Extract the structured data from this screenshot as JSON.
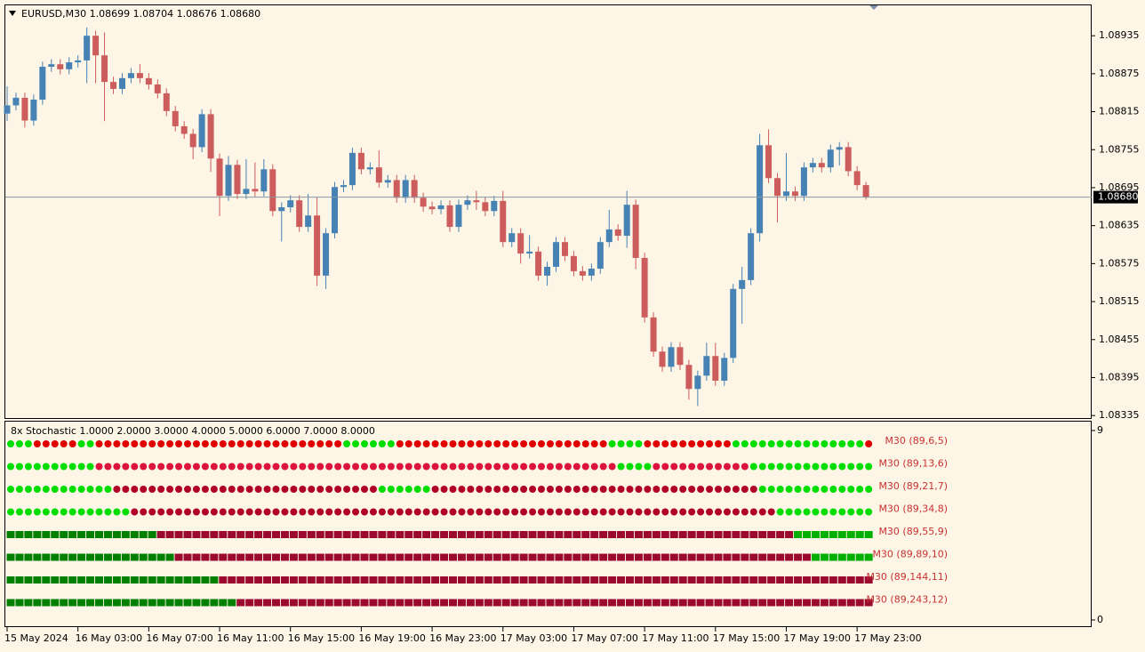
{
  "chart_data": {
    "type": "candlestick",
    "title": "EURUSD,M30  1.08699 1.08704 1.08676 1.08680",
    "up_color": "#4682b4",
    "down_color": "#cd5c5c",
    "background": "#fdf5e6",
    "categories": [
      "15 May 2024",
      null,
      null,
      null,
      null,
      null,
      null,
      null,
      "16 May 03:00",
      null,
      null,
      null,
      null,
      null,
      null,
      null,
      "16 May 07:00",
      null,
      null,
      null,
      null,
      null,
      null,
      null,
      "16 May 11:00",
      null,
      null,
      null,
      null,
      null,
      null,
      null,
      "16 May 15:00",
      null,
      null,
      null,
      null,
      null,
      null,
      null,
      "16 May 19:00",
      null,
      null,
      null,
      null,
      null,
      null,
      null,
      "16 May 23:00",
      null,
      null,
      null,
      null,
      null,
      null,
      null,
      "17 May 03:00",
      null,
      null,
      null,
      null,
      null,
      null,
      null,
      "17 May 07:00",
      null,
      null,
      null,
      null,
      null,
      null,
      null,
      "17 May 11:00",
      null,
      null,
      null,
      null,
      null,
      null,
      null,
      "17 May 15:00",
      null,
      null,
      null,
      null,
      null,
      null,
      null,
      "17 May 19:00",
      null,
      null,
      null,
      null,
      null,
      null,
      null,
      "17 May 23:00",
      null
    ],
    "open": [
      1.08812,
      1.08825,
      1.08837,
      1.08801,
      1.08834,
      1.08886,
      1.0889,
      1.08882,
      1.08893,
      1.08896,
      1.08935,
      1.08904,
      1.08862,
      1.08851,
      1.08868,
      1.08876,
      1.08868,
      1.08858,
      1.08844,
      1.08816,
      1.08792,
      1.0878,
      1.08759,
      1.08811,
      1.08741,
      1.08682,
      1.08731,
      1.08685,
      1.08693,
      1.08689,
      1.08724,
      1.08658,
      1.08664,
      1.08675,
      1.08633,
      1.08651,
      1.08556,
      1.08623,
      1.08696,
      1.08699,
      1.0875,
      1.08724,
      1.08727,
      1.08703,
      1.08707,
      1.08679,
      1.08707,
      1.08679,
      1.08665,
      1.08661,
      1.08667,
      1.08633,
      1.08668,
      1.08675,
      1.08672,
      1.08658,
      1.08674,
      1.08609,
      1.08623,
      1.08591,
      1.08594,
      1.08556,
      1.0857,
      1.08609,
      1.08587,
      1.08563,
      1.08556,
      1.08567,
      1.08609,
      1.08629,
      1.08619,
      1.08668,
      1.08584,
      1.0849,
      1.08436,
      1.08412,
      1.08443,
      1.08415,
      1.08377,
      1.08398,
      1.08429,
      1.0839,
      1.08426,
      1.08535,
      1.08549,
      1.08623,
      1.08762,
      1.0871,
      1.08682,
      1.08689,
      1.08682,
      1.08727,
      1.08734,
      1.08727,
      1.08755,
      1.08759,
      1.08721,
      1.08699
    ],
    "high": [
      1.08855,
      1.08845,
      1.08845,
      1.08842,
      1.08894,
      1.08898,
      1.08898,
      1.08901,
      1.08904,
      1.08948,
      1.08943,
      1.0894,
      1.0887,
      1.08876,
      1.08884,
      1.0889,
      1.08876,
      1.08866,
      1.08852,
      1.08824,
      1.088,
      1.08788,
      1.08819,
      1.08819,
      1.08749,
      1.08745,
      1.08739,
      1.0874,
      1.08735,
      1.0874,
      1.08732,
      1.08672,
      1.08683,
      1.08683,
      1.08685,
      1.0868,
      1.08631,
      1.08704,
      1.08707,
      1.08758,
      1.08758,
      1.08735,
      1.08754,
      1.08715,
      1.08715,
      1.08715,
      1.08715,
      1.08687,
      1.08673,
      1.08675,
      1.08675,
      1.08676,
      1.08683,
      1.0869,
      1.0868,
      1.08682,
      1.0869,
      1.08631,
      1.08631,
      1.0862,
      1.08602,
      1.08578,
      1.08617,
      1.08617,
      1.08595,
      1.08571,
      1.08575,
      1.08617,
      1.0866,
      1.08637,
      1.0869,
      1.08676,
      1.08592,
      1.08498,
      1.08444,
      1.08451,
      1.08451,
      1.08423,
      1.08406,
      1.0845,
      1.0845,
      1.08434,
      1.08543,
      1.0857,
      1.08631,
      1.0878,
      1.08787,
      1.08718,
      1.0875,
      1.08697,
      1.08735,
      1.08742,
      1.08742,
      1.08763,
      1.08767,
      1.08767,
      1.08729,
      1.08704
    ],
    "low": [
      1.088,
      1.08817,
      1.0879,
      1.08793,
      1.08826,
      1.08878,
      1.08874,
      1.08874,
      1.08885,
      1.0886,
      1.0886,
      1.088,
      1.08843,
      1.08843,
      1.0886,
      1.0886,
      1.0885,
      1.08836,
      1.08808,
      1.08784,
      1.08772,
      1.0874,
      1.08751,
      1.0872,
      1.0865,
      1.08674,
      1.08677,
      1.08677,
      1.08681,
      1.08681,
      1.0865,
      1.0861,
      1.08656,
      1.08625,
      1.08625,
      1.0854,
      1.08535,
      1.08615,
      1.08688,
      1.08691,
      1.08716,
      1.08716,
      1.08695,
      1.08695,
      1.08671,
      1.08671,
      1.08671,
      1.08657,
      1.08653,
      1.08653,
      1.08625,
      1.08625,
      1.0866,
      1.0866,
      1.0865,
      1.0865,
      1.08601,
      1.08601,
      1.08575,
      1.08583,
      1.08548,
      1.0854,
      1.08562,
      1.08579,
      1.08555,
      1.08548,
      1.08548,
      1.08559,
      1.08601,
      1.08611,
      1.086,
      1.08566,
      1.08482,
      1.08428,
      1.08404,
      1.08404,
      1.08407,
      1.0836,
      1.0835,
      1.0839,
      1.08382,
      1.08382,
      1.08418,
      1.0848,
      1.08541,
      1.0861,
      1.08702,
      1.0864,
      1.08674,
      1.08674,
      1.08674,
      1.08719,
      1.08719,
      1.08719,
      1.0873,
      1.08713,
      1.08691,
      1.08676
    ],
    "close": [
      1.08825,
      1.08837,
      1.08801,
      1.08834,
      1.08886,
      1.0889,
      1.08882,
      1.08893,
      1.08896,
      1.08935,
      1.08904,
      1.08862,
      1.08851,
      1.08868,
      1.08876,
      1.08868,
      1.08858,
      1.08844,
      1.08816,
      1.08792,
      1.0878,
      1.08759,
      1.08811,
      1.08741,
      1.08682,
      1.08731,
      1.08685,
      1.08693,
      1.08689,
      1.08724,
      1.08658,
      1.08664,
      1.08675,
      1.08633,
      1.08651,
      1.08556,
      1.08623,
      1.08696,
      1.08699,
      1.0875,
      1.08724,
      1.08727,
      1.08703,
      1.08707,
      1.08679,
      1.08707,
      1.08679,
      1.08665,
      1.08661,
      1.08667,
      1.08633,
      1.08668,
      1.08675,
      1.08672,
      1.08658,
      1.08674,
      1.08609,
      1.08623,
      1.08591,
      1.08594,
      1.08556,
      1.0857,
      1.08609,
      1.08587,
      1.08563,
      1.08556,
      1.08567,
      1.08609,
      1.08629,
      1.08619,
      1.08668,
      1.08584,
      1.0849,
      1.08436,
      1.08412,
      1.08443,
      1.08415,
      1.08377,
      1.08398,
      1.08429,
      1.0839,
      1.08426,
      1.08535,
      1.08549,
      1.08623,
      1.08762,
      1.0871,
      1.08682,
      1.08689,
      1.08682,
      1.08727,
      1.08734,
      1.08727,
      1.08755,
      1.08759,
      1.08721,
      1.08699,
      1.0868
    ],
    "ylim": [
      1.08331,
      1.08983
    ],
    "yticks": [
      1.08935,
      1.08875,
      1.08815,
      1.08755,
      1.08695,
      1.08635,
      1.08575,
      1.08515,
      1.08455,
      1.08395,
      1.08335
    ],
    "current_price": {
      "value": 1.0868,
      "label": "1.08680"
    },
    "indicator": {
      "title": "8x Stochastic 1.0000 2.0000 3.0000 4.0000 5.0000 6.0000 7.0000 8.0000",
      "ylim": [
        0,
        9
      ],
      "yticks": [
        9,
        0
      ],
      "label_color": "#c83232",
      "rows": [
        {
          "name": "M30 (89,6,5)",
          "shape": "circle",
          "runs": [
            {
              "color": "#00dd00",
              "count": 3
            },
            {
              "color": "#e00000",
              "count": 5
            },
            {
              "color": "#00dd00",
              "count": 2
            },
            {
              "color": "#e00000",
              "count": 28
            },
            {
              "color": "#00dd00",
              "count": 6
            },
            {
              "color": "#e00000",
              "count": 24
            },
            {
              "color": "#00dd00",
              "count": 4
            },
            {
              "color": "#e00000",
              "count": 10
            },
            {
              "color": "#00dd00",
              "count": 15
            },
            {
              "color": "#e00000",
              "count": 1
            }
          ]
        },
        {
          "name": "M30 (89,13,6)",
          "shape": "circle",
          "runs": [
            {
              "color": "#00dd00",
              "count": 10
            },
            {
              "color": "#dc143c",
              "count": 59
            },
            {
              "color": "#00dd00",
              "count": 4
            },
            {
              "color": "#dc143c",
              "count": 11
            },
            {
              "color": "#00dd00",
              "count": 14
            }
          ]
        },
        {
          "name": "M30 (89,21,7)",
          "shape": "circle",
          "runs": [
            {
              "color": "#00dd00",
              "count": 12
            },
            {
              "color": "#b0002a",
              "count": 30
            },
            {
              "color": "#00dd00",
              "count": 6
            },
            {
              "color": "#b0002a",
              "count": 37
            },
            {
              "color": "#00dd00",
              "count": 13
            }
          ]
        },
        {
          "name": "M30 (89,34,8)",
          "shape": "circle",
          "runs": [
            {
              "color": "#00dd00",
              "count": 14
            },
            {
              "color": "#b0002a",
              "count": 73
            },
            {
              "color": "#00dd00",
              "count": 11
            }
          ]
        },
        {
          "name": "M30 (89,55,9)",
          "shape": "square",
          "runs": [
            {
              "color": "#008000",
              "count": 17
            },
            {
              "color": "#9b0a2e",
              "count": 72
            },
            {
              "color": "#00b000",
              "count": 9
            }
          ]
        },
        {
          "name": "M30 (89,89,10)",
          "shape": "square",
          "runs": [
            {
              "color": "#008000",
              "count": 19
            },
            {
              "color": "#9b0a2e",
              "count": 72
            },
            {
              "color": "#00b000",
              "count": 7
            }
          ]
        },
        {
          "name": "M30 (89,144,11)",
          "shape": "square",
          "runs": [
            {
              "color": "#008000",
              "count": 24
            },
            {
              "color": "#9b0a2e",
              "count": 74
            }
          ]
        },
        {
          "name": "M30 (89,243,12)",
          "shape": "square",
          "runs": [
            {
              "color": "#008000",
              "count": 26
            },
            {
              "color": "#9b0a2e",
              "count": 72
            }
          ]
        }
      ]
    }
  }
}
